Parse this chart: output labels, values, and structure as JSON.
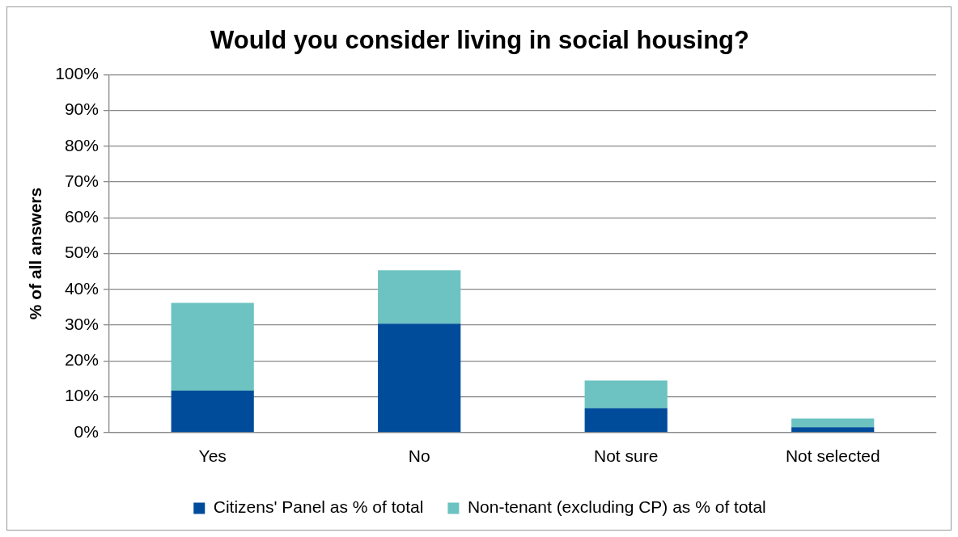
{
  "chart_data": {
    "type": "bar",
    "title": "Would you consider living in social housing?",
    "ylabel": "% of all answers",
    "categories": [
      "Yes",
      "No",
      "Not sure",
      "Not selected"
    ],
    "stacked": true,
    "series": [
      {
        "name": "Citizens' Panel as % of total",
        "color": "#004c9b",
        "values": [
          11.7,
          30.4,
          6.8,
          1.5
        ]
      },
      {
        "name": "Non-tenant (excluding CP) as % of total",
        "color": "#6cc3c1",
        "values": [
          24.5,
          14.9,
          7.7,
          2.4
        ]
      }
    ],
    "ylim": [
      0,
      100
    ],
    "yticks": [
      {
        "value": 0,
        "label": "0%"
      },
      {
        "value": 10,
        "label": "10%"
      },
      {
        "value": 20,
        "label": "20%"
      },
      {
        "value": 30,
        "label": "30%"
      },
      {
        "value": 40,
        "label": "40%"
      },
      {
        "value": 50,
        "label": "50%"
      },
      {
        "value": 60,
        "label": "60%"
      },
      {
        "value": 70,
        "label": "70%"
      },
      {
        "value": 80,
        "label": "80%"
      },
      {
        "value": 90,
        "label": "90%"
      },
      {
        "value": 100,
        "label": "100%"
      }
    ],
    "grid": "y",
    "legend": "bottom"
  }
}
